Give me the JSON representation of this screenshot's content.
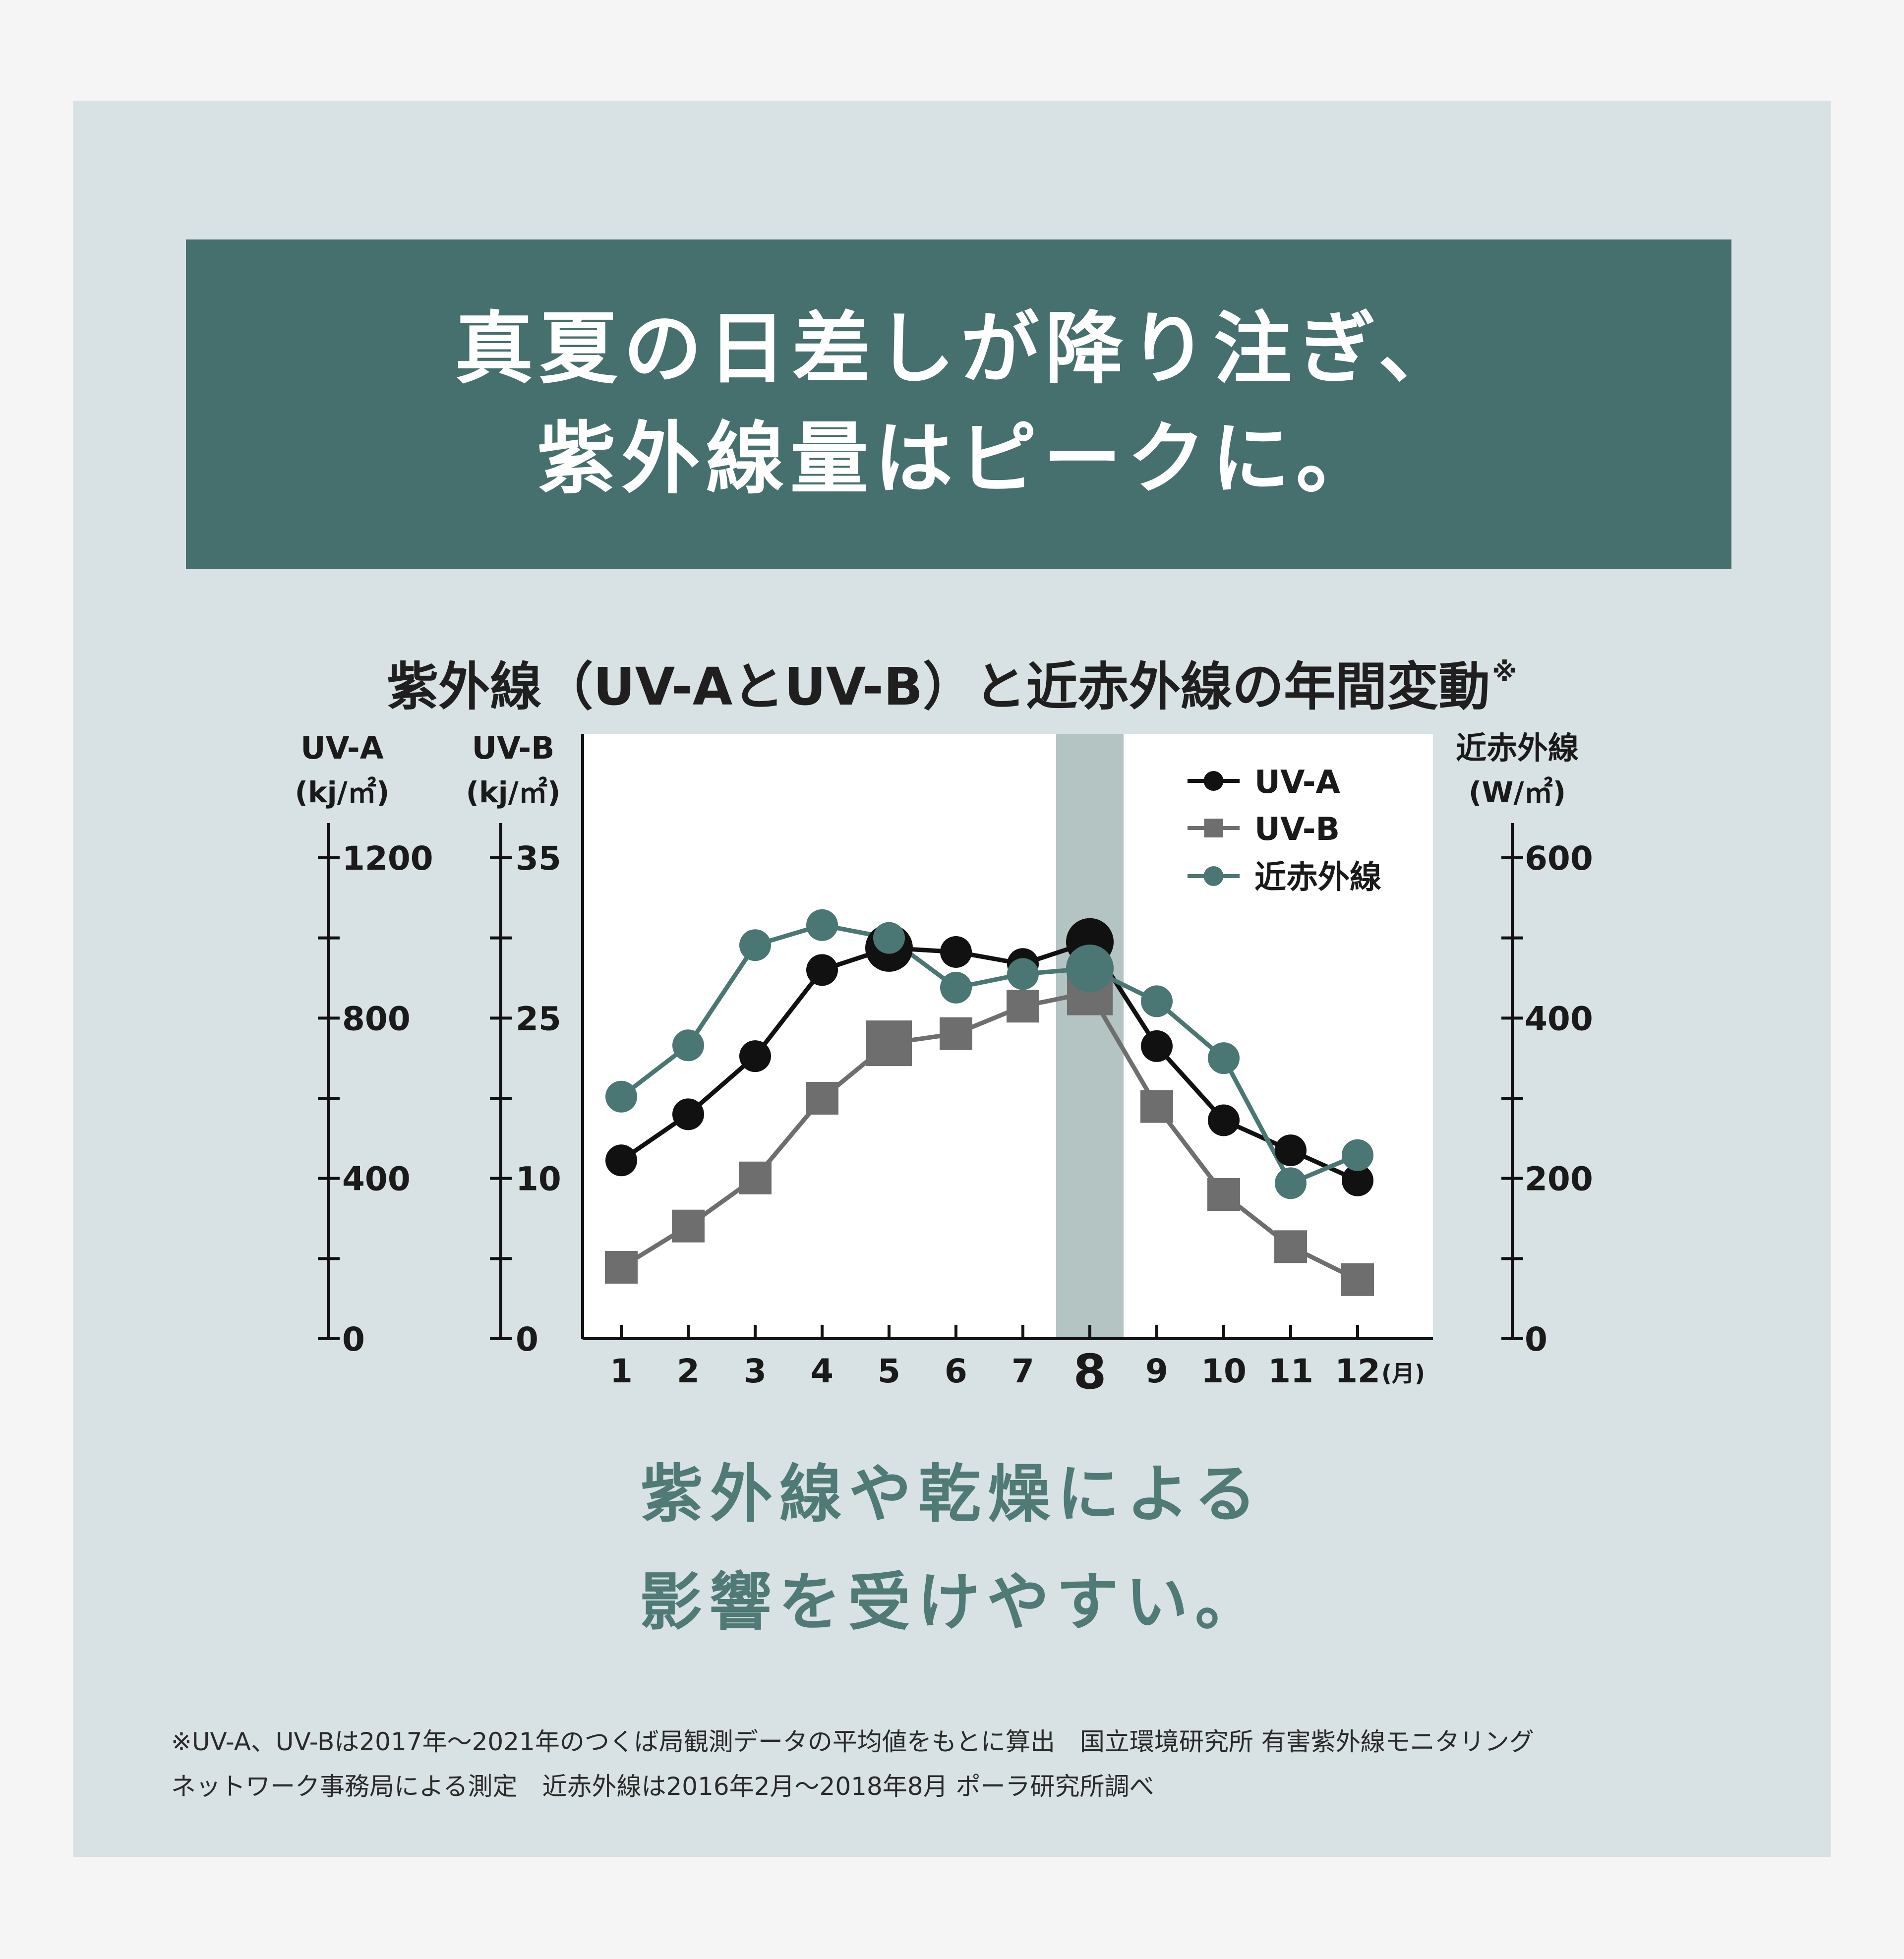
{
  "headline": {
    "line1": "真夏の日差しが降り注ぎ、",
    "line2": "紫外線量はピークに。"
  },
  "chart_data": {
    "type": "line",
    "title": "紫外線（UV-AとUV-B）と近赤外線の年間変動",
    "title_mark": "※",
    "x": [
      "1",
      "2",
      "3",
      "4",
      "5",
      "6",
      "7",
      "8",
      "9",
      "10",
      "11",
      "12"
    ],
    "x_unit": "(月)",
    "highlight_month": "8",
    "axes": {
      "uva": {
        "label": "UV-A",
        "unit": "(kj/㎡)",
        "range": [
          0,
          1200
        ],
        "ticks": [
          "1200",
          "800",
          "400",
          "0"
        ]
      },
      "uvb": {
        "label": "UV-B",
        "unit": "(kj/㎡)",
        "range": [
          0,
          35
        ],
        "ticks": [
          "35",
          "25",
          "10",
          "0"
        ]
      },
      "nir": {
        "label": "近赤外線",
        "unit": "(W/㎡)",
        "range": [
          0,
          600
        ],
        "ticks": [
          "600",
          "400",
          "200",
          "0"
        ]
      }
    },
    "series": [
      {
        "name": "UV-A",
        "axis": "uva",
        "color": "#111111",
        "marker": "circle",
        "values": [
          445,
          560,
          705,
          920,
          975,
          965,
          935,
          990,
          730,
          545,
          470,
          395
        ],
        "emphasis": [
          4,
          7
        ]
      },
      {
        "name": "UV-B",
        "axis": "uvb",
        "color": "#6e6e6e",
        "marker": "square",
        "values": [
          5.2,
          8.2,
          11.7,
          17.5,
          21.5,
          22.2,
          24.2,
          25.2,
          16.9,
          10.5,
          6.7,
          4.3
        ],
        "emphasis": [
          4,
          7
        ]
      },
      {
        "name": "近赤外線",
        "axis": "nir",
        "color": "#4a7773",
        "marker": "circle",
        "values": [
          302,
          366,
          491,
          516,
          500,
          438,
          455,
          462,
          421,
          350,
          194,
          229
        ],
        "emphasis": [
          7
        ]
      }
    ],
    "legend_position": "top-right",
    "grid": false
  },
  "subtitle": {
    "line1": "紫外線や乾燥による",
    "line2": "影響を受けやすい。"
  },
  "footnote": {
    "line1": "※UV-A、UV-Bは2017年〜2021年のつくば局観測データの平均値をもとに算出　国立環境研究所 有害紫外線モニタリング",
    "line2": "ネットワーク事務局による測定　近赤外線は2016年2月〜2018年8月 ポーラ研究所調べ"
  },
  "colors": {
    "page_bg": "#f5f5f5",
    "panel_bg": "#d8e1e3",
    "banner_bg": "#46706d",
    "accent": "#4f7a76",
    "highlight_band": "#b3c4c3"
  }
}
